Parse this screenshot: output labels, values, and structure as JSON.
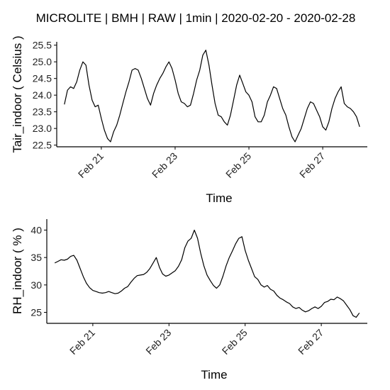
{
  "title": "MICROLITE | BMH | RAW | 1min | 2020-02-20 - 2020-02-28",
  "chart_data": [
    {
      "type": "line",
      "xlabel": "Time",
      "ylabel": "Tair_indoor ( Celsius )",
      "x_tick_labels": [
        "Feb 21",
        "Feb 23",
        "Feb 25",
        "Feb 27"
      ],
      "x_tick_dates": [
        "2020-02-21",
        "2020-02-23",
        "2020-02-25",
        "2020-02-27"
      ],
      "y_tick_labels": [
        "22.5",
        "23.0",
        "23.5",
        "24.0",
        "24.5",
        "25.0",
        "25.5"
      ],
      "y_ticks": [
        22.5,
        23.0,
        23.5,
        24.0,
        24.5,
        25.0,
        25.5
      ],
      "xlim": [
        "2020-02-19 19:00",
        "2020-02-28 05:00"
      ],
      "ylim": [
        22.45,
        25.6
      ],
      "grid": false,
      "series": [
        {
          "x": [
            "2020-02-20 00:00",
            "2020-02-20 02:00",
            "2020-02-20 04:00",
            "2020-02-20 06:00",
            "2020-02-20 08:00",
            "2020-02-20 10:00",
            "2020-02-20 12:00",
            "2020-02-20 14:00",
            "2020-02-20 16:00",
            "2020-02-20 18:00",
            "2020-02-20 20:00",
            "2020-02-20 22:00",
            "2020-02-21 00:00",
            "2020-02-21 02:00",
            "2020-02-21 04:00",
            "2020-02-21 06:00",
            "2020-02-21 08:00",
            "2020-02-21 10:00",
            "2020-02-21 12:00",
            "2020-02-21 14:00",
            "2020-02-21 16:00",
            "2020-02-21 18:00",
            "2020-02-21 20:00",
            "2020-02-21 22:00",
            "2020-02-22 00:00",
            "2020-02-22 02:00",
            "2020-02-22 04:00",
            "2020-02-22 06:00",
            "2020-02-22 08:00",
            "2020-02-22 10:00",
            "2020-02-22 12:00",
            "2020-02-22 14:00",
            "2020-02-22 16:00",
            "2020-02-22 18:00",
            "2020-02-22 20:00",
            "2020-02-22 22:00",
            "2020-02-23 00:00",
            "2020-02-23 02:00",
            "2020-02-23 04:00",
            "2020-02-23 06:00",
            "2020-02-23 08:00",
            "2020-02-23 10:00",
            "2020-02-23 12:00",
            "2020-02-23 14:00",
            "2020-02-23 16:00",
            "2020-02-23 18:00",
            "2020-02-23 20:00",
            "2020-02-23 22:00",
            "2020-02-24 00:00",
            "2020-02-24 02:00",
            "2020-02-24 04:00",
            "2020-02-24 06:00",
            "2020-02-24 08:00",
            "2020-02-24 10:00",
            "2020-02-24 12:00",
            "2020-02-24 14:00",
            "2020-02-24 16:00",
            "2020-02-24 18:00",
            "2020-02-24 20:00",
            "2020-02-24 22:00",
            "2020-02-25 00:00",
            "2020-02-25 02:00",
            "2020-02-25 04:00",
            "2020-02-25 06:00",
            "2020-02-25 08:00",
            "2020-02-25 10:00",
            "2020-02-25 12:00",
            "2020-02-25 14:00",
            "2020-02-25 16:00",
            "2020-02-25 18:00",
            "2020-02-25 20:00",
            "2020-02-25 22:00",
            "2020-02-26 00:00",
            "2020-02-26 02:00",
            "2020-02-26 04:00",
            "2020-02-26 06:00",
            "2020-02-26 08:00",
            "2020-02-26 10:00",
            "2020-02-26 12:00",
            "2020-02-26 14:00",
            "2020-02-26 16:00",
            "2020-02-26 18:00",
            "2020-02-26 20:00",
            "2020-02-26 22:00",
            "2020-02-27 00:00",
            "2020-02-27 02:00",
            "2020-02-27 04:00",
            "2020-02-27 06:00",
            "2020-02-27 08:00",
            "2020-02-27 10:00",
            "2020-02-27 12:00",
            "2020-02-27 14:00",
            "2020-02-27 16:00",
            "2020-02-27 18:00",
            "2020-02-27 20:00",
            "2020-02-27 22:00",
            "2020-02-28 00:00"
          ],
          "y": [
            23.72,
            24.15,
            24.25,
            24.2,
            24.4,
            24.75,
            25.0,
            24.9,
            24.3,
            23.85,
            23.65,
            23.7,
            23.3,
            22.95,
            22.7,
            22.6,
            22.9,
            23.1,
            23.4,
            23.75,
            24.1,
            24.4,
            24.75,
            24.8,
            24.75,
            24.5,
            24.2,
            23.9,
            23.7,
            24.05,
            24.3,
            24.5,
            24.65,
            24.85,
            25.0,
            24.8,
            24.45,
            24.05,
            23.8,
            23.75,
            23.65,
            23.7,
            24.05,
            24.45,
            24.75,
            25.2,
            25.35,
            24.9,
            24.3,
            23.75,
            23.4,
            23.35,
            23.2,
            23.1,
            23.4,
            23.85,
            24.3,
            24.6,
            24.35,
            24.1,
            24.0,
            23.8,
            23.35,
            23.2,
            23.2,
            23.4,
            23.8,
            24.0,
            24.25,
            24.2,
            23.9,
            23.6,
            23.4,
            23.05,
            22.75,
            22.6,
            22.8,
            23.0,
            23.3,
            23.6,
            23.8,
            23.75,
            23.55,
            23.35,
            23.05,
            22.95,
            23.2,
            23.6,
            23.9,
            24.1,
            24.25,
            23.75,
            23.65,
            23.6,
            23.5,
            23.35,
            23.05
          ]
        }
      ]
    },
    {
      "type": "line",
      "xlabel": "Time",
      "ylabel": "RH_indoor ( % )",
      "x_tick_labels": [
        "Feb 21",
        "Feb 23",
        "Feb 25",
        "Feb 27"
      ],
      "x_tick_dates": [
        "2020-02-21",
        "2020-02-23",
        "2020-02-25",
        "2020-02-27"
      ],
      "y_tick_labels": [
        "25",
        "30",
        "35",
        "40"
      ],
      "y_ticks": [
        25,
        30,
        35,
        40
      ],
      "xlim": [
        "2020-02-19 19:00",
        "2020-02-28 05:00"
      ],
      "ylim": [
        23,
        42
      ],
      "grid": false,
      "series": [
        {
          "x": [
            "2020-02-20 00:00",
            "2020-02-20 02:00",
            "2020-02-20 04:00",
            "2020-02-20 06:00",
            "2020-02-20 08:00",
            "2020-02-20 10:00",
            "2020-02-20 12:00",
            "2020-02-20 14:00",
            "2020-02-20 16:00",
            "2020-02-20 18:00",
            "2020-02-20 20:00",
            "2020-02-20 22:00",
            "2020-02-21 00:00",
            "2020-02-21 02:00",
            "2020-02-21 04:00",
            "2020-02-21 06:00",
            "2020-02-21 08:00",
            "2020-02-21 10:00",
            "2020-02-21 12:00",
            "2020-02-21 14:00",
            "2020-02-21 16:00",
            "2020-02-21 18:00",
            "2020-02-21 20:00",
            "2020-02-21 22:00",
            "2020-02-22 00:00",
            "2020-02-22 02:00",
            "2020-02-22 04:00",
            "2020-02-22 06:00",
            "2020-02-22 08:00",
            "2020-02-22 10:00",
            "2020-02-22 12:00",
            "2020-02-22 14:00",
            "2020-02-22 16:00",
            "2020-02-22 18:00",
            "2020-02-22 20:00",
            "2020-02-22 22:00",
            "2020-02-23 00:00",
            "2020-02-23 02:00",
            "2020-02-23 04:00",
            "2020-02-23 06:00",
            "2020-02-23 08:00",
            "2020-02-23 10:00",
            "2020-02-23 12:00",
            "2020-02-23 14:00",
            "2020-02-23 16:00",
            "2020-02-23 18:00",
            "2020-02-23 20:00",
            "2020-02-23 22:00",
            "2020-02-24 00:00",
            "2020-02-24 02:00",
            "2020-02-24 04:00",
            "2020-02-24 06:00",
            "2020-02-24 08:00",
            "2020-02-24 10:00",
            "2020-02-24 12:00",
            "2020-02-24 14:00",
            "2020-02-24 16:00",
            "2020-02-24 18:00",
            "2020-02-24 20:00",
            "2020-02-24 22:00",
            "2020-02-25 00:00",
            "2020-02-25 02:00",
            "2020-02-25 04:00",
            "2020-02-25 06:00",
            "2020-02-25 08:00",
            "2020-02-25 10:00",
            "2020-02-25 12:00",
            "2020-02-25 14:00",
            "2020-02-25 16:00",
            "2020-02-25 18:00",
            "2020-02-25 20:00",
            "2020-02-25 22:00",
            "2020-02-26 00:00",
            "2020-02-26 02:00",
            "2020-02-26 04:00",
            "2020-02-26 06:00",
            "2020-02-26 08:00",
            "2020-02-26 10:00",
            "2020-02-26 12:00",
            "2020-02-26 14:00",
            "2020-02-26 16:00",
            "2020-02-26 18:00",
            "2020-02-26 20:00",
            "2020-02-26 22:00",
            "2020-02-27 00:00",
            "2020-02-27 02:00",
            "2020-02-27 04:00",
            "2020-02-27 06:00",
            "2020-02-27 08:00",
            "2020-02-27 10:00",
            "2020-02-27 12:00",
            "2020-02-27 14:00",
            "2020-02-27 16:00",
            "2020-02-27 18:00",
            "2020-02-27 20:00",
            "2020-02-27 22:00",
            "2020-02-28 00:00"
          ],
          "y": [
            34.0,
            34.3,
            34.6,
            34.5,
            34.7,
            35.2,
            35.4,
            34.5,
            33.0,
            31.5,
            30.3,
            29.5,
            29.0,
            28.8,
            28.6,
            28.5,
            28.6,
            28.8,
            28.6,
            28.4,
            28.5,
            28.9,
            29.4,
            29.7,
            30.5,
            31.2,
            31.7,
            31.8,
            31.9,
            32.3,
            33.0,
            34.0,
            35.0,
            33.2,
            32.0,
            31.6,
            31.8,
            32.2,
            32.6,
            33.4,
            34.6,
            36.8,
            38.0,
            38.5,
            40.0,
            38.5,
            35.8,
            33.5,
            31.8,
            30.8,
            29.9,
            29.4,
            30.0,
            31.6,
            33.5,
            35.0,
            36.2,
            37.5,
            38.5,
            38.8,
            36.3,
            34.5,
            33.0,
            31.5,
            31.0,
            30.0,
            29.6,
            29.9,
            29.2,
            28.9,
            28.1,
            27.6,
            27.3,
            26.9,
            26.6,
            26.0,
            25.7,
            25.9,
            25.4,
            25.1,
            25.3,
            25.7,
            26.0,
            25.7,
            26.1,
            26.8,
            27.0,
            27.4,
            27.3,
            27.8,
            27.5,
            27.1,
            26.3,
            25.5,
            24.4,
            24.1,
            24.9
          ]
        }
      ]
    }
  ]
}
